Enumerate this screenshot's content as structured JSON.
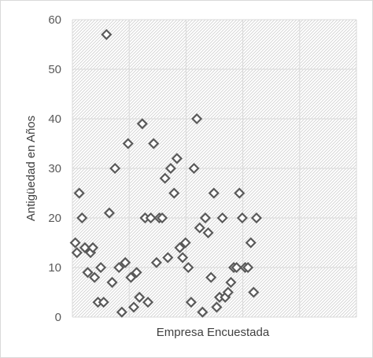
{
  "chart_data": {
    "type": "scatter",
    "title": "",
    "xlabel": "Empresa Encuestada",
    "ylabel": "Antigüedad en Años",
    "xlim": [
      0,
      5
    ],
    "ylim": [
      0,
      60
    ],
    "y_ticks": [
      0,
      10,
      20,
      30,
      40,
      50,
      60
    ],
    "x_ticks_labeled": false,
    "x_gridlines": [
      1,
      2,
      3,
      4
    ],
    "grid": true,
    "plot_area_fill": "diagonal-hatch",
    "legend": "none",
    "marker": "diamond-open",
    "marker_color": "#595959",
    "series": [
      {
        "points": [
          {
            "x": 0.05,
            "y": 15
          },
          {
            "x": 0.08,
            "y": 13
          },
          {
            "x": 0.12,
            "y": 25
          },
          {
            "x": 0.17,
            "y": 20
          },
          {
            "x": 0.22,
            "y": 14
          },
          {
            "x": 0.27,
            "y": 9
          },
          {
            "x": 0.32,
            "y": 13
          },
          {
            "x": 0.36,
            "y": 14
          },
          {
            "x": 0.39,
            "y": 8
          },
          {
            "x": 0.45,
            "y": 3
          },
          {
            "x": 0.5,
            "y": 10
          },
          {
            "x": 0.55,
            "y": 3
          },
          {
            "x": 0.6,
            "y": 57
          },
          {
            "x": 0.65,
            "y": 21
          },
          {
            "x": 0.7,
            "y": 7
          },
          {
            "x": 0.75,
            "y": 30
          },
          {
            "x": 0.82,
            "y": 10
          },
          {
            "x": 0.87,
            "y": 1
          },
          {
            "x": 0.93,
            "y": 11
          },
          {
            "x": 0.98,
            "y": 35
          },
          {
            "x": 1.03,
            "y": 8
          },
          {
            "x": 1.08,
            "y": 2
          },
          {
            "x": 1.13,
            "y": 9
          },
          {
            "x": 1.18,
            "y": 4
          },
          {
            "x": 1.23,
            "y": 39
          },
          {
            "x": 1.28,
            "y": 20
          },
          {
            "x": 1.33,
            "y": 3
          },
          {
            "x": 1.38,
            "y": 20
          },
          {
            "x": 1.43,
            "y": 35
          },
          {
            "x": 1.48,
            "y": 11
          },
          {
            "x": 1.53,
            "y": 20
          },
          {
            "x": 1.58,
            "y": 20
          },
          {
            "x": 1.63,
            "y": 28
          },
          {
            "x": 1.68,
            "y": 12
          },
          {
            "x": 1.73,
            "y": 30
          },
          {
            "x": 1.79,
            "y": 25
          },
          {
            "x": 1.84,
            "y": 32
          },
          {
            "x": 1.89,
            "y": 14
          },
          {
            "x": 1.94,
            "y": 12
          },
          {
            "x": 1.99,
            "y": 15
          },
          {
            "x": 2.04,
            "y": 10
          },
          {
            "x": 2.09,
            "y": 3
          },
          {
            "x": 2.14,
            "y": 30
          },
          {
            "x": 2.19,
            "y": 40
          },
          {
            "x": 2.24,
            "y": 18
          },
          {
            "x": 2.29,
            "y": 1
          },
          {
            "x": 2.34,
            "y": 20
          },
          {
            "x": 2.39,
            "y": 17
          },
          {
            "x": 2.44,
            "y": 8
          },
          {
            "x": 2.49,
            "y": 25
          },
          {
            "x": 2.54,
            "y": 2
          },
          {
            "x": 2.59,
            "y": 4
          },
          {
            "x": 2.64,
            "y": 20
          },
          {
            "x": 2.69,
            "y": 4
          },
          {
            "x": 2.74,
            "y": 5
          },
          {
            "x": 2.79,
            "y": 7
          },
          {
            "x": 2.84,
            "y": 10
          },
          {
            "x": 2.89,
            "y": 10
          },
          {
            "x": 2.94,
            "y": 25
          },
          {
            "x": 2.99,
            "y": 20
          },
          {
            "x": 3.04,
            "y": 10
          },
          {
            "x": 3.09,
            "y": 10
          },
          {
            "x": 3.14,
            "y": 15
          },
          {
            "x": 3.19,
            "y": 5
          },
          {
            "x": 3.24,
            "y": 20
          }
        ]
      }
    ]
  }
}
